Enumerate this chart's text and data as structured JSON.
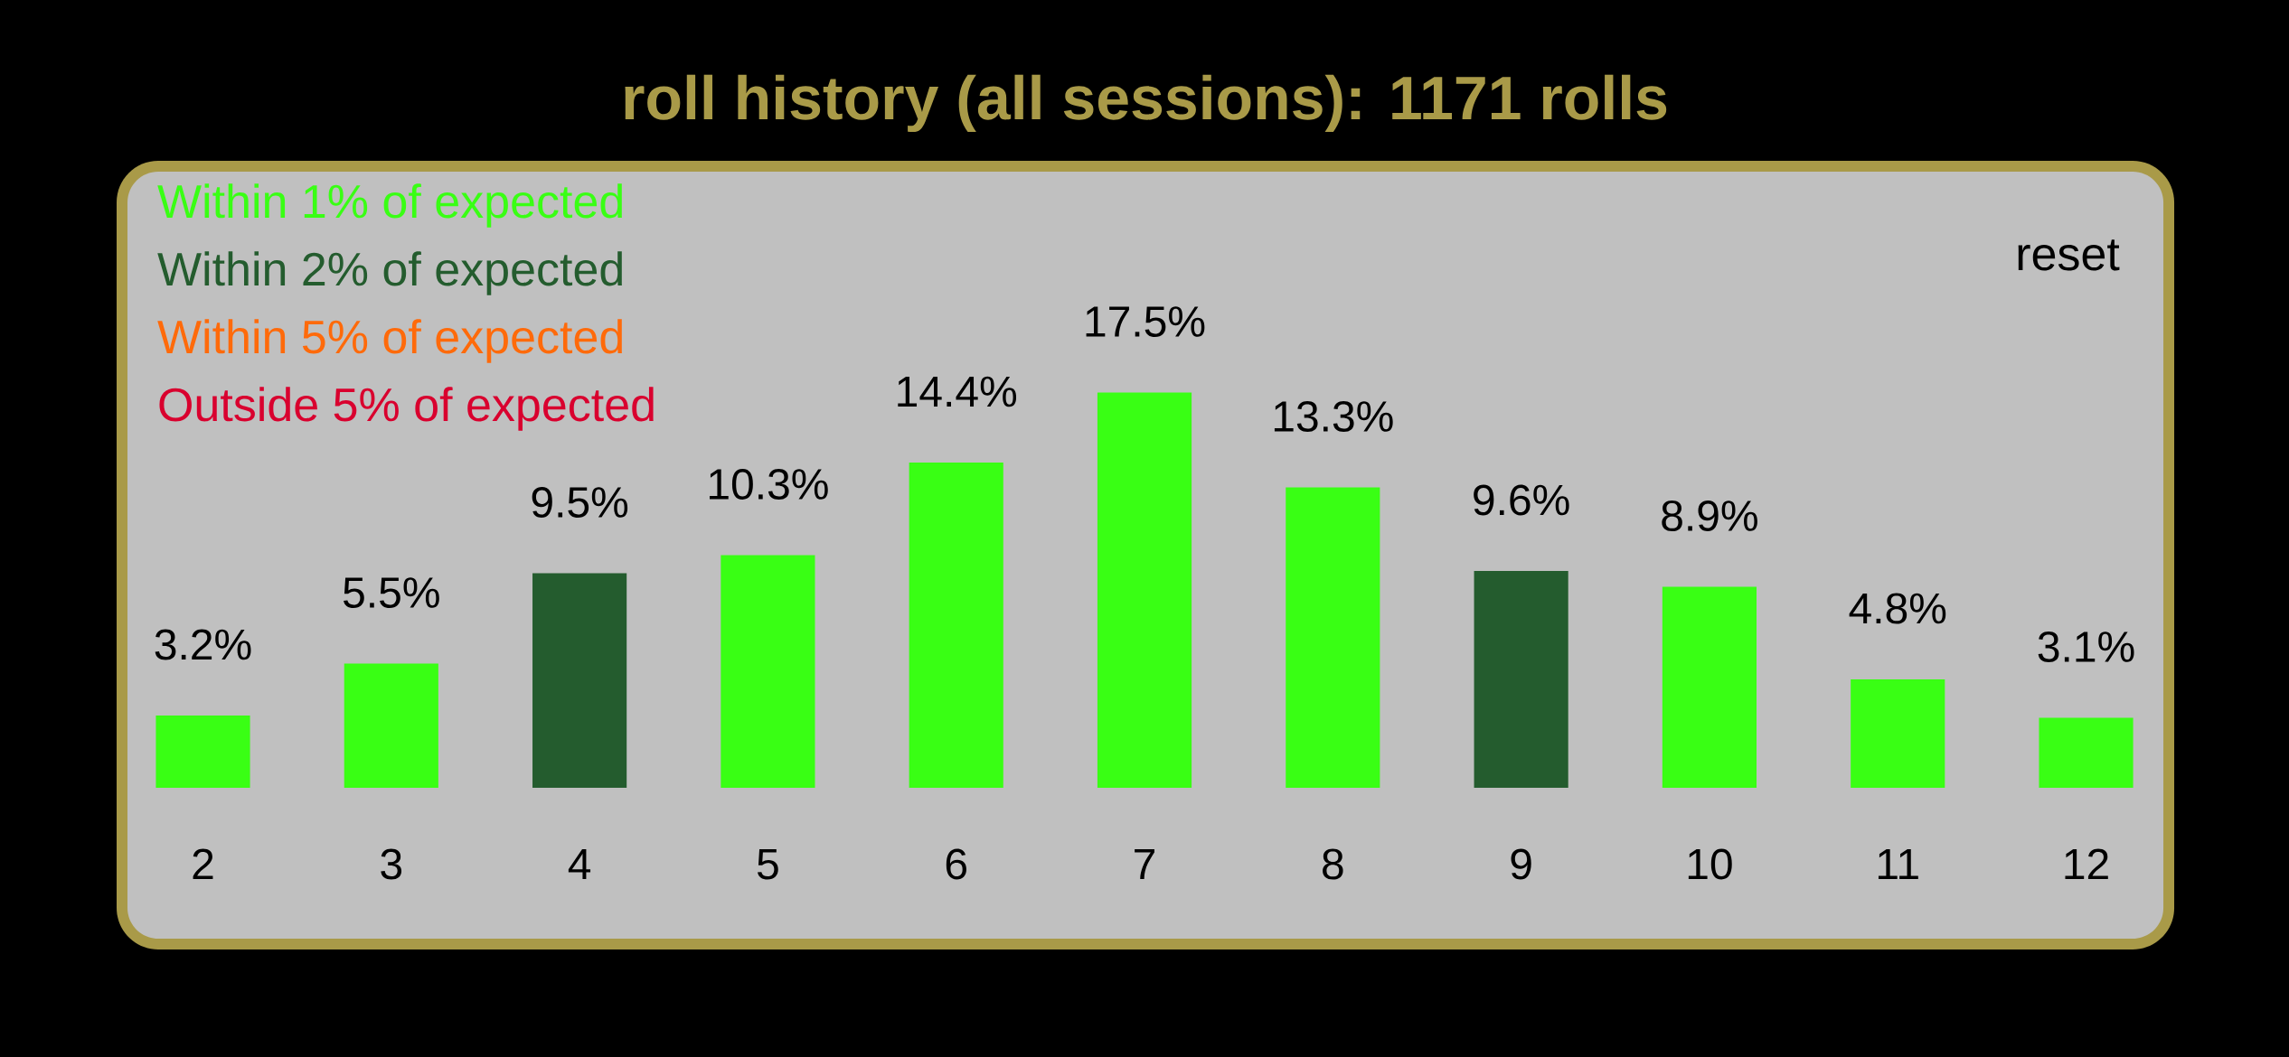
{
  "chart_data": {
    "type": "bar",
    "title": "roll history (all sessions): 1171 rolls",
    "categories": [
      "2",
      "3",
      "4",
      "5",
      "6",
      "7",
      "8",
      "9",
      "10",
      "11",
      "12"
    ],
    "series": [
      {
        "name": "Within 1% of expected",
        "color": "#39ff14",
        "values": [
          3.2,
          5.5,
          null,
          10.3,
          14.4,
          17.5,
          13.3,
          null,
          8.9,
          4.8,
          3.1
        ],
        "value_labels": [
          "3.2%",
          "5.5%",
          null,
          "10.3%",
          "14.4%",
          "17.5%",
          "13.3%",
          null,
          "8.9%",
          "4.8%",
          "3.1%"
        ]
      },
      {
        "name": "Within 2% of expected",
        "color": "#245c2e",
        "values": [
          null,
          null,
          9.5,
          null,
          null,
          null,
          null,
          9.6,
          null,
          null,
          null
        ],
        "value_labels": [
          null,
          null,
          "9.5%",
          null,
          null,
          null,
          null,
          "9.6%",
          null,
          null,
          null
        ]
      },
      {
        "name": "Within 5% of expected",
        "color": "#ff6a0a",
        "values": [
          null,
          null,
          null,
          null,
          null,
          null,
          null,
          null,
          null,
          null,
          null
        ]
      },
      {
        "name": "Outside 5% of expected",
        "color": "#d9002e",
        "values": [
          null,
          null,
          null,
          null,
          null,
          null,
          null,
          null,
          null,
          null,
          null
        ]
      }
    ],
    "legend": "top left",
    "tick_labels": "x",
    "annotations": [
      "reset"
    ]
  }
}
